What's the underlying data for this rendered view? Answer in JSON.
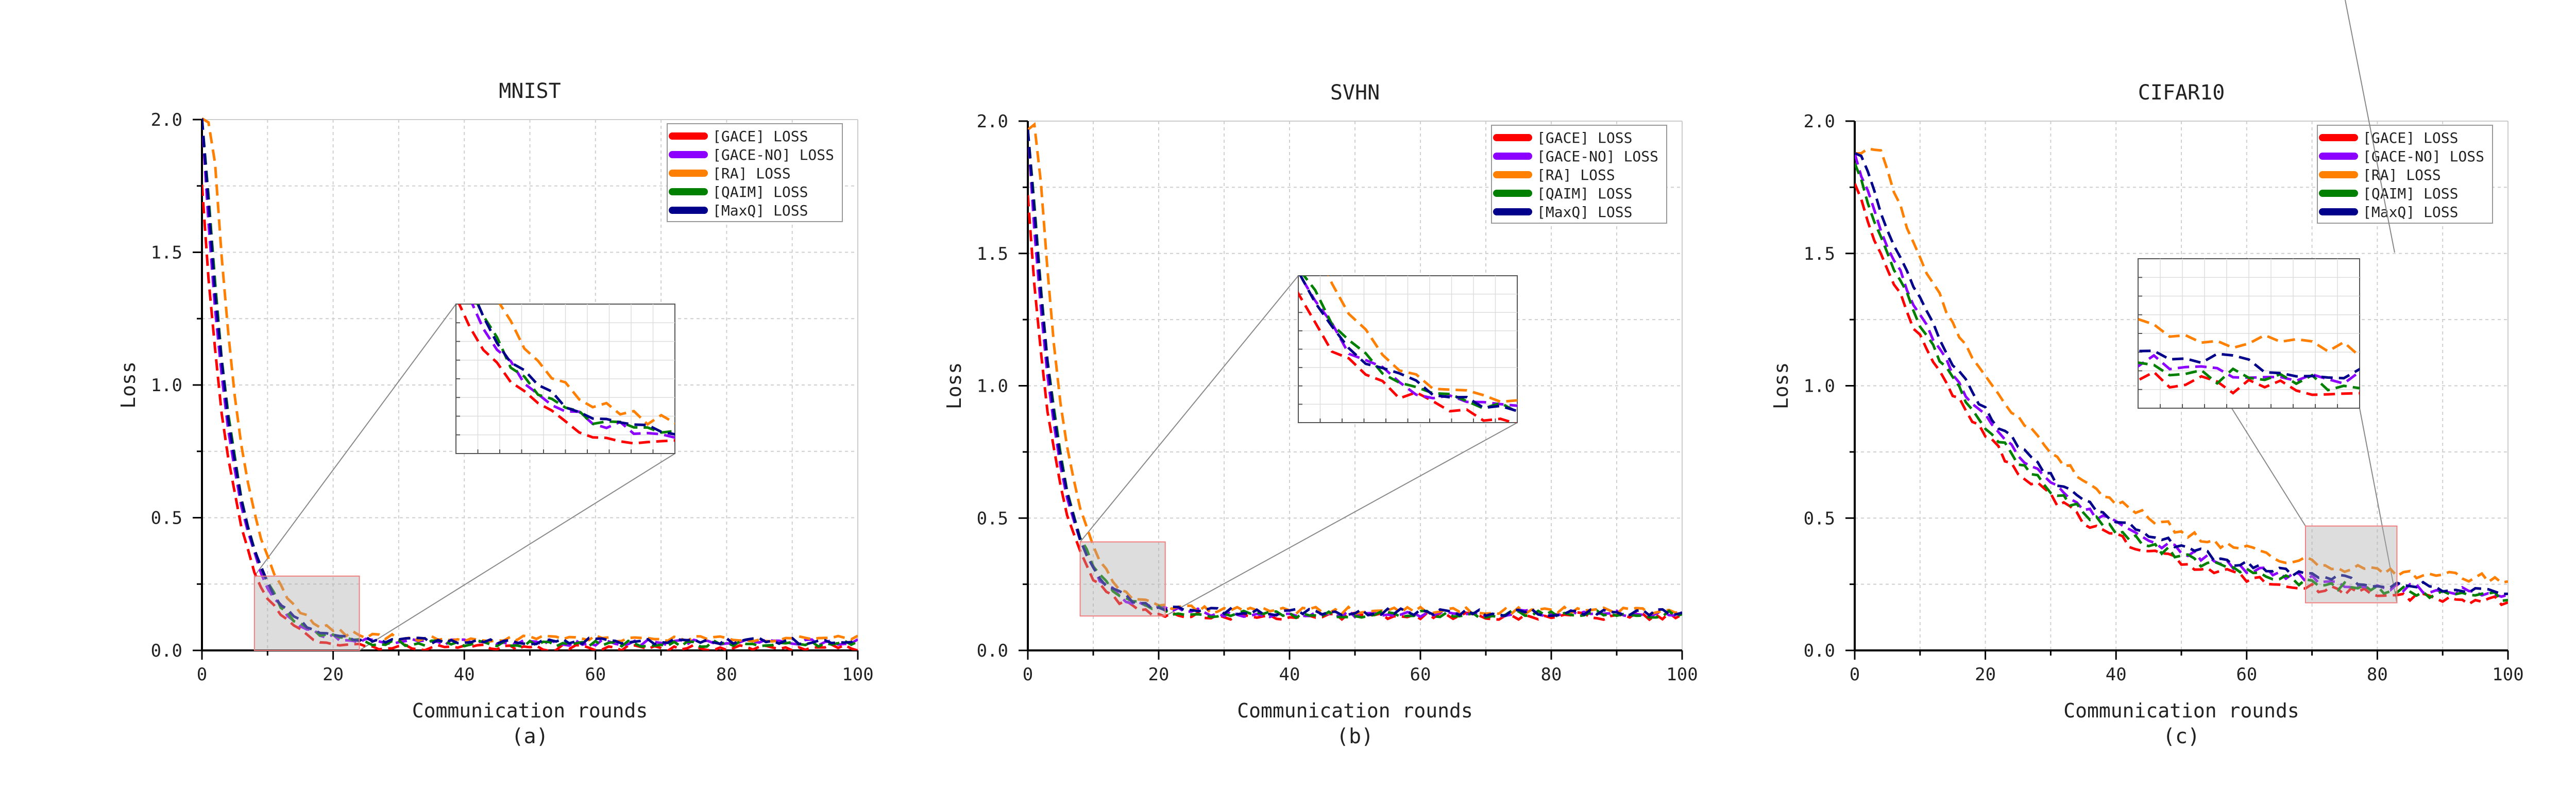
{
  "chart_data": [
    {
      "type": "line",
      "subplot_label": "(a)",
      "title": "MNIST",
      "xlabel": "Communication rounds",
      "ylabel": "Loss",
      "xlim": [
        0,
        100
      ],
      "ylim": [
        0,
        2
      ],
      "xticks": [
        "0",
        "20",
        "40",
        "60",
        "80",
        "100"
      ],
      "yticks": [
        "0.0",
        "0.5",
        "1.0",
        "1.5",
        "2.0"
      ],
      "grid": true,
      "legend_position": "top-right",
      "inset": {
        "x_range": [
          8,
          24
        ],
        "y_range": [
          0,
          0.28
        ],
        "placement": "upper-middle"
      },
      "curve_model": {
        "start": 2.0,
        "tau": 4.5,
        "floor": 0.03,
        "noise": 0.012
      },
      "series": [
        {
          "name": "[GACE] LOSS",
          "color": "#ff0000",
          "offset": -0.02,
          "lag": -0.6
        },
        {
          "name": "[GACE-NO] LOSS",
          "color": "#8b00ff",
          "offset": 0.0,
          "lag": 0.0
        },
        {
          "name": "[RA] LOSS",
          "color": "#ff7f00",
          "offset": 0.015,
          "lag": 1.6
        },
        {
          "name": "[QAIM] LOSS",
          "color": "#008000",
          "offset": -0.005,
          "lag": 0.3
        },
        {
          "name": "[MaxQ] LOSS",
          "color": "#00008b",
          "offset": 0.005,
          "lag": 0.2
        }
      ]
    },
    {
      "type": "line",
      "subplot_label": "(b)",
      "title": "SVHN",
      "xlabel": "Communication rounds",
      "ylabel": "Loss",
      "xlim": [
        0,
        100
      ],
      "ylim": [
        0,
        2
      ],
      "xticks": [
        "0",
        "20",
        "40",
        "60",
        "80",
        "100"
      ],
      "yticks": [
        "0.0",
        "0.5",
        "1.0",
        "1.5",
        "2.0"
      ],
      "grid": true,
      "legend_position": "top-right",
      "inset": {
        "x_range": [
          8,
          21
        ],
        "y_range": [
          0.13,
          0.41
        ],
        "placement": "upper-middle"
      },
      "curve_model": {
        "start": 1.98,
        "tau": 4.2,
        "floor": 0.14,
        "noise": 0.014
      },
      "series": [
        {
          "name": "[GACE] LOSS",
          "color": "#ff0000",
          "offset": -0.01,
          "lag": -0.6
        },
        {
          "name": "[GACE-NO] LOSS",
          "color": "#8b00ff",
          "offset": 0.0,
          "lag": 0.0
        },
        {
          "name": "[RA] LOSS",
          "color": "#ff7f00",
          "offset": 0.01,
          "lag": 1.5
        },
        {
          "name": "[QAIM] LOSS",
          "color": "#008000",
          "offset": -0.003,
          "lag": 0.3
        },
        {
          "name": "[MaxQ] LOSS",
          "color": "#00008b",
          "offset": 0.004,
          "lag": 0.2
        }
      ]
    },
    {
      "type": "line",
      "subplot_label": "(c)",
      "title": "CIFAR10",
      "xlabel": "Communication rounds",
      "ylabel": "Loss",
      "xlim": [
        0,
        100
      ],
      "ylim": [
        0,
        2
      ],
      "xticks": [
        "0",
        "20",
        "40",
        "60",
        "80",
        "100"
      ],
      "yticks": [
        "0.0",
        "0.5",
        "1.0",
        "1.5",
        "2.0"
      ],
      "grid": true,
      "legend_position": "top-right",
      "inset": {
        "x_range": [
          69,
          83
        ],
        "y_range": [
          0.18,
          0.47
        ],
        "placement": "upper-middle"
      },
      "curve_model": {
        "start": 1.88,
        "tau": 22,
        "floor": 0.2,
        "noise": 0.018
      },
      "series": [
        {
          "name": "[GACE] LOSS",
          "color": "#ff0000",
          "offset": -0.03,
          "lag": -1.5
        },
        {
          "name": "[GACE-NO] LOSS",
          "color": "#8b00ff",
          "offset": 0.0,
          "lag": 0.0
        },
        {
          "name": "[RA] LOSS",
          "color": "#ff7f00",
          "offset": 0.05,
          "lag": 4.0
        },
        {
          "name": "[QAIM] LOSS",
          "color": "#008000",
          "offset": -0.015,
          "lag": -0.5
        },
        {
          "name": "[MaxQ] LOSS",
          "color": "#00008b",
          "offset": 0.01,
          "lag": 1.0
        }
      ]
    }
  ]
}
